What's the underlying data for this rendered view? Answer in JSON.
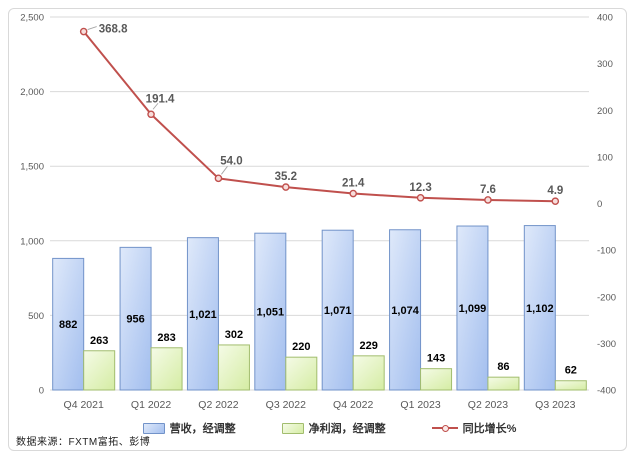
{
  "source_note": "数据来源：FXTM富拓、彭博",
  "legend": {
    "items": [
      {
        "label": "营收，经调整",
        "swatch": "bar-blue"
      },
      {
        "label": "净利润，经调整",
        "swatch": "bar-green"
      },
      {
        "label": "同比增长%",
        "swatch": "line-red"
      }
    ]
  },
  "colors": {
    "revenue_fill_top": "#dfe9fa",
    "revenue_fill_bottom": "#a5c0ef",
    "revenue_border": "#7293c9",
    "profit_fill_top": "#f5fbe7",
    "profit_fill_bottom": "#d6eda6",
    "profit_border": "#a2bd6e",
    "growth_line": "#c0504d",
    "growth_marker_fill": "#f7dddb",
    "grid": "#d9d9d9",
    "axis_text": "#595959",
    "line_label_text": "#595959",
    "bar_label_text": "#000000",
    "leader_line": "#a6a6a6"
  },
  "chart_data": {
    "type": "combo-bar-line",
    "title": "",
    "categories": [
      "Q4 2021",
      "Q1 2022",
      "Q2 2022",
      "Q3 2022",
      "Q4 2022",
      "Q1 2023",
      "Q2 2023",
      "Q3 2023"
    ],
    "series": [
      {
        "name": "营收，经调整",
        "type": "bar",
        "axis": "left",
        "values": [
          882,
          956,
          1021,
          1051,
          1071,
          1074,
          1099,
          1102
        ]
      },
      {
        "name": "净利润，经调整",
        "type": "bar",
        "axis": "left",
        "values": [
          263,
          283,
          302,
          220,
          229,
          143,
          86,
          62
        ]
      },
      {
        "name": "同比增长%",
        "type": "line",
        "axis": "right",
        "values": [
          368.8,
          191.4,
          54.0,
          35.2,
          21.4,
          12.3,
          7.6,
          4.9
        ]
      }
    ],
    "left_axis": {
      "min": 0,
      "max": 2500,
      "step": 500,
      "ticks": [
        "0",
        "500",
        "1,000",
        "1,500",
        "2,000",
        "2,500"
      ]
    },
    "right_axis": {
      "min": -400,
      "max": 400,
      "step": 100,
      "ticks": [
        "-400",
        "-300",
        "-200",
        "-100",
        "0",
        "100",
        "200",
        "300",
        "400"
      ]
    },
    "grid": true,
    "legend_position": "bottom"
  }
}
